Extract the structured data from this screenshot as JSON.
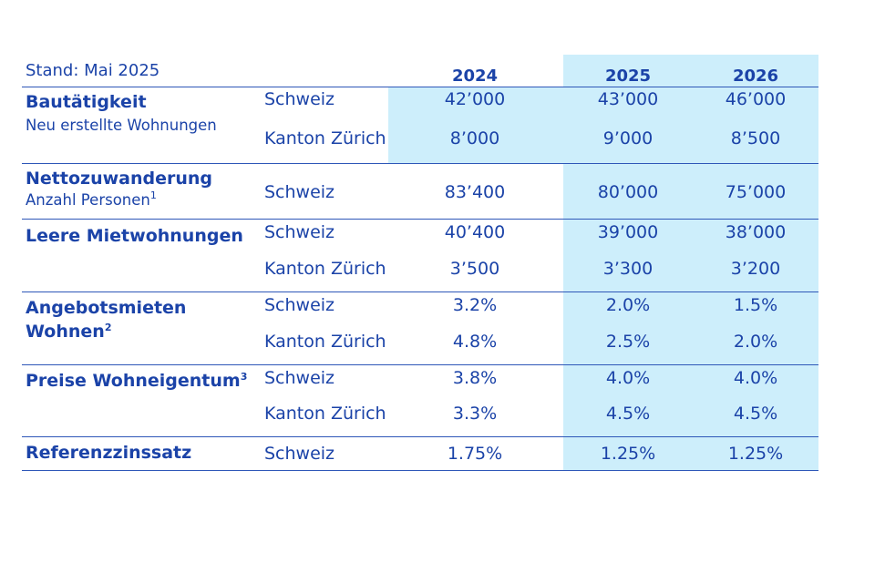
{
  "stand": "Stand: Mai 2025",
  "years": [
    "2024",
    "2025",
    "2026"
  ],
  "rows": [
    {
      "title": "Bautätigkeit",
      "subtitle": "Neu erstellte Wohnungen",
      "lines": [
        {
          "region": "Schweiz",
          "values": [
            "42’000",
            "43’000",
            "46’000"
          ]
        },
        {
          "region": "Kanton Zürich",
          "values": [
            "8’000",
            "9’000",
            "8’500"
          ]
        }
      ]
    },
    {
      "title": "Nettozuwanderung",
      "subtitle": "Anzahl Personen",
      "subtitle_sup": "1",
      "lines": [
        {
          "region": "Schweiz",
          "values": [
            "83’400",
            "80’000",
            "75’000"
          ]
        }
      ]
    },
    {
      "title": "Leere Mietwohnungen",
      "lines": [
        {
          "region": "Schweiz",
          "values": [
            "40’400",
            "39’000",
            "38’000"
          ]
        },
        {
          "region": "Kanton Zürich",
          "values": [
            "3’500",
            "3’300",
            "3’200"
          ]
        }
      ]
    },
    {
      "title_line1": "Angebotsmieten",
      "title_line2": "Wohnen",
      "title_sup": "2",
      "lines": [
        {
          "region": "Schweiz",
          "values": [
            "3.2%",
            "2.0%",
            "1.5%"
          ]
        },
        {
          "region": "Kanton Zürich",
          "values": [
            "4.8%",
            "2.5%",
            "2.0%"
          ]
        }
      ]
    },
    {
      "title": "Preise Wohneigentum",
      "title_sup": "3",
      "lines": [
        {
          "region": "Schweiz",
          "values": [
            "3.8%",
            "4.0%",
            "4.0%"
          ]
        },
        {
          "region": "Kanton Zürich",
          "values": [
            "3.3%",
            "4.5%",
            "4.5%"
          ]
        }
      ]
    },
    {
      "title": "Referenzzinssatz",
      "lines": [
        {
          "region": "Schweiz",
          "values": [
            "1.75%",
            "1.25%",
            "1.25%"
          ]
        }
      ]
    }
  ],
  "colors": {
    "text": "#1b43a8",
    "highlight": "#cdeefb",
    "rule": "#2e57b8"
  }
}
